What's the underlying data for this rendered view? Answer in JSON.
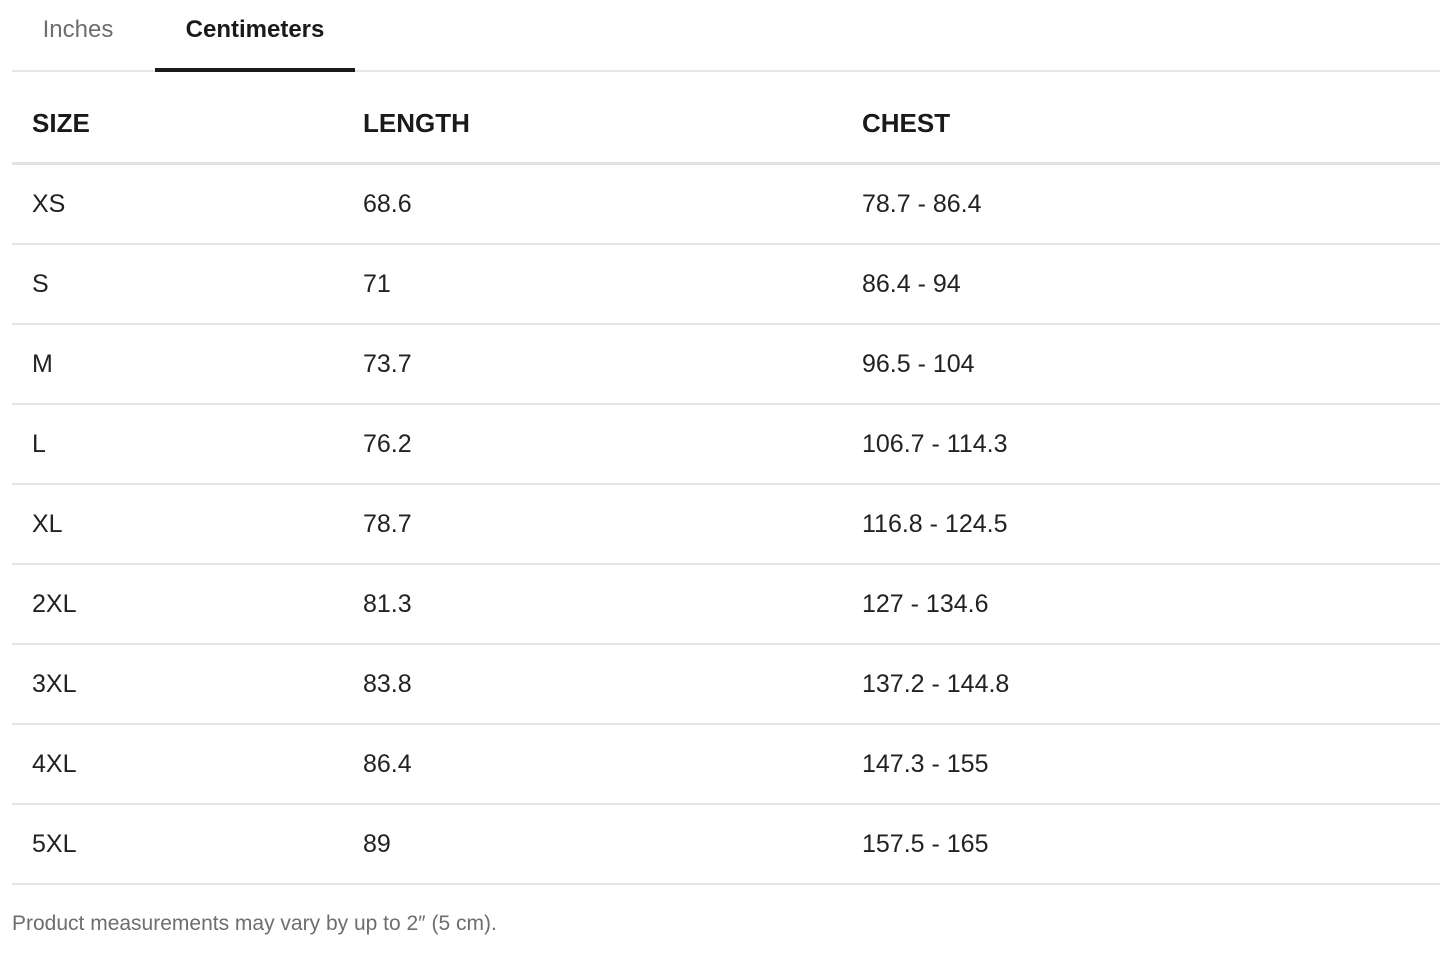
{
  "tabs": [
    {
      "label": "Inches",
      "active": false
    },
    {
      "label": "Centimeters",
      "active": true
    }
  ],
  "table": {
    "headers": [
      "SIZE",
      "LENGTH",
      "CHEST"
    ],
    "rows": [
      [
        "XS",
        "68.6",
        "78.7 - 86.4"
      ],
      [
        "S",
        "71",
        "86.4 - 94"
      ],
      [
        "M",
        "73.7",
        "96.5 - 104"
      ],
      [
        "L",
        "76.2",
        "106.7 - 114.3"
      ],
      [
        "XL",
        "78.7",
        "116.8 - 124.5"
      ],
      [
        "2XL",
        "81.3",
        "127 - 134.6"
      ],
      [
        "3XL",
        "83.8",
        "137.2 - 144.8"
      ],
      [
        "4XL",
        "86.4",
        "147.3 - 155"
      ],
      [
        "5XL",
        "89",
        "157.5 - 165"
      ]
    ]
  },
  "footnote": "Product measurements may vary by up to 2″ (5 cm).",
  "colors": {
    "active_tab": "#1a1a1a",
    "inactive_tab": "#6e6e6e",
    "divider": "#e6e6e6"
  }
}
